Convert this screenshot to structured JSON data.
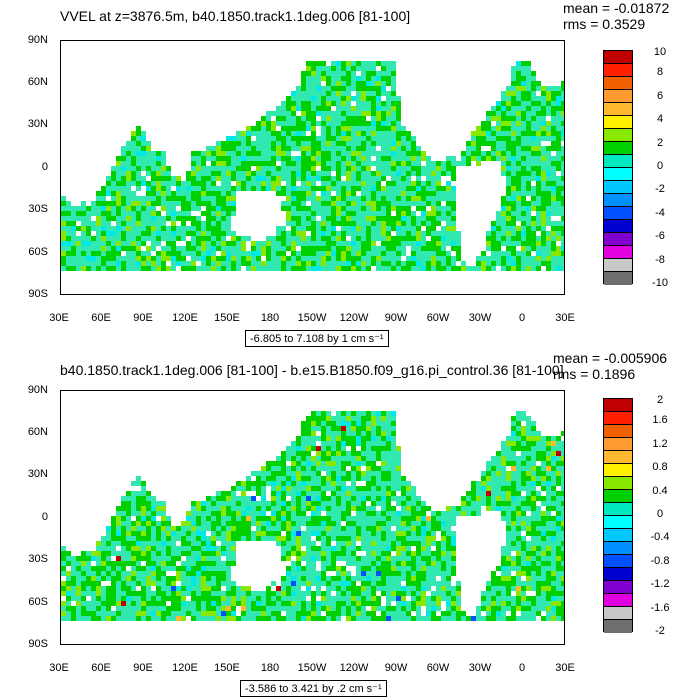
{
  "top": {
    "title": "VVEL at z=3876.5m, b40.1850.track1.1deg.006 [81-100]",
    "mean": "mean = -0.01872",
    "rms": "rms = 0.3529",
    "range": "-6.805 to 7.108 by 1 cm s⁻¹",
    "colorbar_labels": [
      "10",
      "8",
      "6",
      "4",
      "2",
      "0",
      "-2",
      "-4",
      "-6",
      "-8",
      "-10"
    ]
  },
  "bottom": {
    "title": "b40.1850.track1.1deg.006 [81-100] - b.e15.B1850.f09_g16.pi_control.36 [81-100]",
    "mean": "mean = -0.005906",
    "rms": "rms = 0.1896",
    "range": "-3.586 to 3.421 by .2 cm s⁻¹",
    "colorbar_labels": [
      "2",
      "1.6",
      "1.2",
      "0.8",
      "0.4",
      "0",
      "-0.4",
      "-0.8",
      "-1.2",
      "-1.6",
      "-2"
    ]
  },
  "lat_labels": [
    "90N",
    "60N",
    "30N",
    "0",
    "30S",
    "60S",
    "90S"
  ],
  "lon_labels": [
    "30E",
    "60E",
    "90E",
    "120E",
    "150E",
    "180",
    "150W",
    "120W",
    "90W",
    "60W",
    "30W",
    "0",
    "30E"
  ],
  "colors": {
    "cb_levels": [
      "#c00000",
      "#ff2000",
      "#f06000",
      "#ff9a30",
      "#ffb830",
      "#fff000",
      "#88e800",
      "#00d000",
      "#00e8c0",
      "#00ffff",
      "#00c8ff",
      "#0090ff",
      "#0050ff",
      "#0000d0",
      "#8000d0",
      "#e000e0",
      "#c8c8c8",
      "#6e6e6e"
    ],
    "ocean_base": "#30e8b0",
    "land": "#ffffff"
  }
}
